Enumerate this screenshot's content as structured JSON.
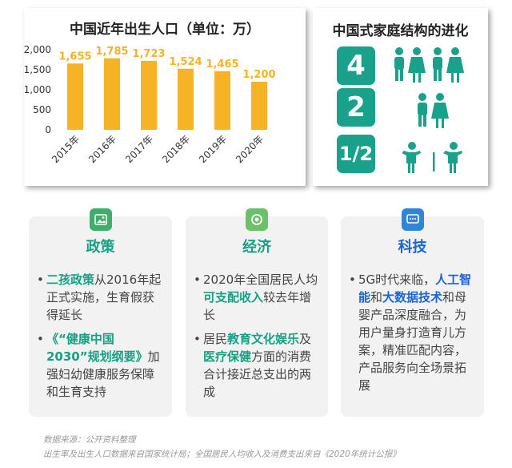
{
  "chart_data": {
    "type": "bar",
    "title": "中国近年出生人口（单位：万）",
    "categories": [
      "2015年",
      "2016年",
      "2017年",
      "2018年",
      "2019年",
      "2020年"
    ],
    "values": [
      1655,
      1785,
      1723,
      1524,
      1465,
      1200
    ],
    "value_labels": [
      "1,655",
      "1,785",
      "1,723",
      "1,524",
      "1,465",
      "1,200"
    ],
    "yticks": [
      "2,000",
      "1,500",
      "1,000",
      "500",
      "0"
    ],
    "ylim": [
      0,
      2000
    ],
    "grid": false,
    "bar_color": "#f5b325"
  },
  "family": {
    "title": "中国式家庭结构的进化",
    "rows": [
      {
        "number": "4",
        "icon": "four-adults-icon"
      },
      {
        "number": "2",
        "icon": "two-parents-icon"
      },
      {
        "number": "1/2",
        "icon": "one-or-two-children-icon"
      }
    ],
    "accent": "#1aa18c"
  },
  "cards": {
    "policy": {
      "title": "政策",
      "icon": "image-icon",
      "item1": {
        "hl": "二孩政策",
        "text": "从2016年起正式实施，生育假获得延长"
      },
      "item2": {
        "hl": "《“健康中国2030”规划纲要》",
        "text": "加强妇幼健康服务保障和生育支持"
      }
    },
    "economy": {
      "title": "经济",
      "icon": "camera-icon",
      "item1": {
        "a": "2020年全国居民人均",
        "hl": "可支配收入",
        "b": "较去年增长"
      },
      "item2": {
        "a": "居民",
        "hl1": "教育文化娱乐",
        "b": "及",
        "hl2": "医疗保健",
        "c": "方面的消费合计接近总支出的两成"
      }
    },
    "tech": {
      "title": "科技",
      "icon": "chat-icon",
      "item1": {
        "a": "5G时代来临，",
        "hl1": "人工智能",
        "b": "和",
        "hl2": "大数据技术",
        "c": "和母婴产品深度融合，为用户量身打造育儿方案，精准匹配内容，产品服务向全场景拓展"
      }
    },
    "colors": {
      "green": "#17a184",
      "blue": "#1a64d4",
      "card_bg": "#f2f2f2"
    }
  },
  "source": {
    "line1": "数据来源：公开资料整理",
    "line2": "出生率及出生人口数据来自国家统计局；全国居民人均收入及消费支出来自《2020年统计公报》"
  }
}
